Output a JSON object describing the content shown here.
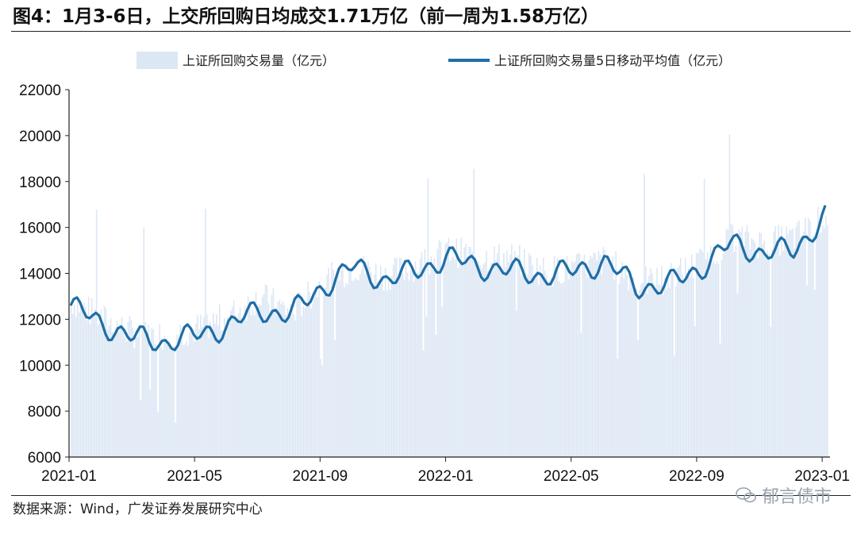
{
  "title": "图4：1月3-6日，上交所回购日均成交1.71万亿（前一周为1.58万亿）",
  "source": "数据来源：Wind，广发证券发展研究中心",
  "watermark": "郁言债市",
  "colors": {
    "bar": "#dce7f4",
    "line": "#1f6ea6"
  },
  "chart_data": {
    "type": "bar+line",
    "title": "图4：1月3-6日，上交所回购日均成交1.71万亿（前一周为1.58万亿）",
    "xlabel": "",
    "ylabel": "",
    "ylim": [
      6000,
      22000
    ],
    "yticks": [
      "6000",
      "8000",
      "10000",
      "12000",
      "14000",
      "16000",
      "18000",
      "20000",
      "22000"
    ],
    "xticks": [
      "2021-01",
      "2021-05",
      "2021-09",
      "2022-01",
      "2022-05",
      "2022-09",
      "2023-01"
    ],
    "grid": false,
    "legend": "top",
    "series": [
      {
        "name": "上证所回购交易量（亿元）",
        "type": "bar",
        "note": "daily values, month-sampled envelope",
        "x": [
          "2021-01",
          "2021-02",
          "2021-03",
          "2021-04",
          "2021-05",
          "2021-06",
          "2021-07",
          "2021-08",
          "2021-09",
          "2021-10",
          "2021-11",
          "2021-12",
          "2022-01",
          "2022-02",
          "2022-03",
          "2022-04",
          "2022-05",
          "2022-06",
          "2022-07",
          "2022-08",
          "2022-09",
          "2022-10",
          "2022-11",
          "2022-12",
          "2023-01"
        ],
        "values": [
          12800,
          12000,
          11400,
          11300,
          11600,
          12100,
          13000,
          12300,
          13600,
          14300,
          13900,
          14400,
          15000,
          14700,
          14700,
          14100,
          14200,
          14600,
          13600,
          13800,
          14500,
          15600,
          15300,
          15600,
          16500
        ]
      },
      {
        "name": "上证所回购交易量5日移动平均值（亿元）",
        "type": "line",
        "x": [
          "2021-01",
          "2021-02",
          "2021-03",
          "2021-04",
          "2021-05",
          "2021-06",
          "2021-07",
          "2021-08",
          "2021-09",
          "2021-10",
          "2021-11",
          "2021-12",
          "2022-01",
          "2022-02",
          "2022-03",
          "2022-04",
          "2022-05",
          "2022-06",
          "2022-07",
          "2022-08",
          "2022-09",
          "2022-10",
          "2022-11",
          "2022-12",
          "2023-01"
        ],
        "values": [
          12600,
          11800,
          11200,
          11000,
          11300,
          11700,
          12400,
          12200,
          13400,
          14300,
          13700,
          14100,
          14700,
          14300,
          14100,
          13900,
          14100,
          14500,
          13400,
          13500,
          14200,
          15300,
          14900,
          15000,
          16500
        ]
      }
    ]
  },
  "legend": {
    "bar_label": "上证所回购交易量（亿元）",
    "line_label": "上证所回购交易量5日移动平均值（亿元）"
  }
}
